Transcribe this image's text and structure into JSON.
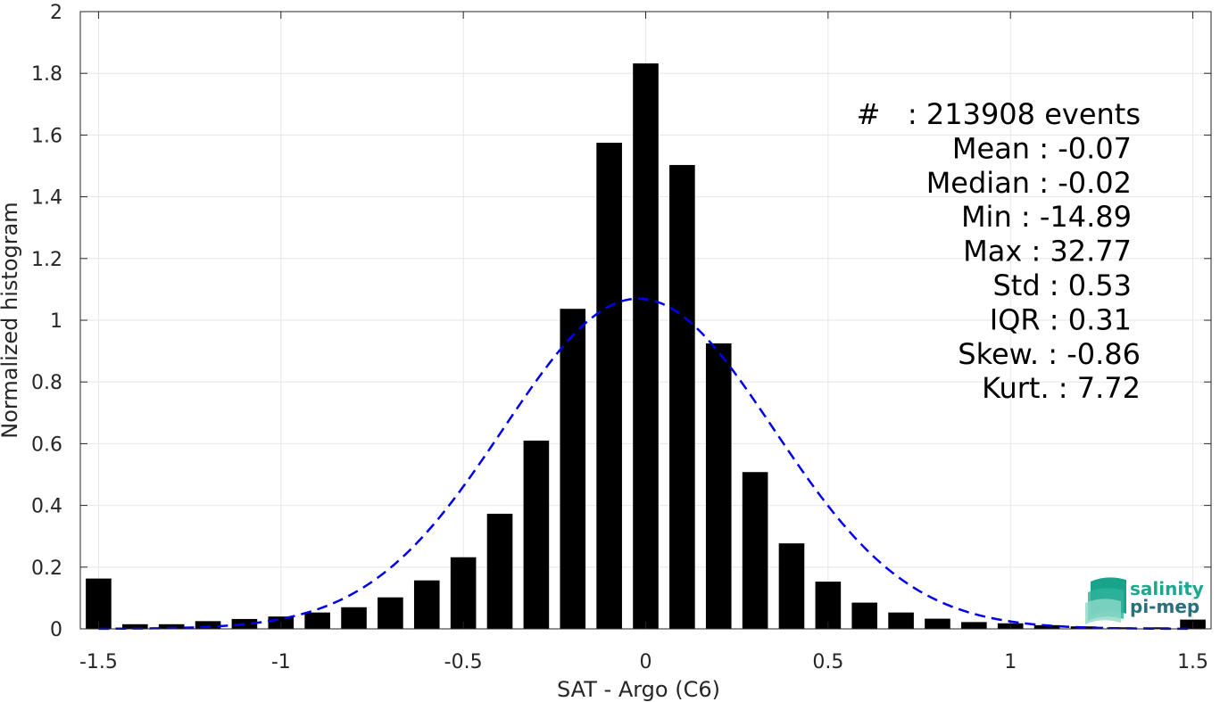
{
  "chart_data": {
    "type": "bar",
    "xlabel": "SAT - Argo (C6)",
    "ylabel": "Normalized histogram",
    "xlim": [
      -1.55,
      1.55
    ],
    "ylim": [
      0,
      2
    ],
    "x_ticks": [
      -1.5,
      -1,
      -0.5,
      0,
      0.5,
      1,
      1.5
    ],
    "x_tick_labels": [
      "-1.5",
      "-1",
      "-0.5",
      "0",
      "0.5",
      "1",
      "1.5"
    ],
    "y_ticks": [
      0,
      0.2,
      0.4,
      0.6,
      0.8,
      1,
      1.2,
      1.4,
      1.6,
      1.8,
      2
    ],
    "y_tick_labels": [
      "0",
      "0.2",
      "0.4",
      "0.6",
      "0.8",
      "1",
      "1.2",
      "1.4",
      "1.6",
      "1.8",
      "2"
    ],
    "grid": true,
    "bar_width": 0.07,
    "bars": {
      "x": [
        -1.5,
        -1.4,
        -1.3,
        -1.2,
        -1.1,
        -1.0,
        -0.9,
        -0.8,
        -0.7,
        -0.6,
        -0.5,
        -0.4,
        -0.3,
        -0.2,
        -0.1,
        0.0,
        0.1,
        0.2,
        0.3,
        0.4,
        0.5,
        0.6,
        0.7,
        0.8,
        0.9,
        1.0,
        1.1,
        1.2,
        1.3,
        1.4,
        1.5
      ],
      "values": [
        0.163,
        0.015,
        0.015,
        0.025,
        0.032,
        0.04,
        0.053,
        0.07,
        0.102,
        0.157,
        0.232,
        0.373,
        0.61,
        1.037,
        1.575,
        1.832,
        1.503,
        0.925,
        0.508,
        0.277,
        0.153,
        0.085,
        0.053,
        0.033,
        0.022,
        0.018,
        0.012,
        0.008,
        0.005,
        0.005,
        0.03
      ],
      "color": "#000000"
    },
    "fit_curve": {
      "style": "dashed",
      "color": "#0000ee",
      "mean": -0.02,
      "std": 0.37,
      "peak": 1.07,
      "x_range": [
        -1.5,
        1.5
      ]
    },
    "annotations": [
      {
        "label": "#  ",
        "sep": " : ",
        "value": "213908 events"
      },
      {
        "label": "Mean",
        "sep": " : ",
        "value": "-0.07"
      },
      {
        "label": "Median",
        "sep": " : ",
        "value": "-0.02"
      },
      {
        "label": "Min",
        "sep": " : ",
        "value": "-14.89"
      },
      {
        "label": "Max",
        "sep": " : ",
        "value": "32.77"
      },
      {
        "label": "Std",
        "sep": " : ",
        "value": "0.53"
      },
      {
        "label": "IQR",
        "sep": " : ",
        "value": "0.31"
      },
      {
        "label": "Skew.",
        "sep": " : ",
        "value": "-0.86"
      },
      {
        "label": "Kurt.",
        "sep": " : ",
        "value": "7.72"
      }
    ]
  },
  "logo": {
    "line1": "salinity",
    "line2": "pi-mep",
    "color_primary": "#1aa88f",
    "color_secondary": "#2a6f7a"
  }
}
